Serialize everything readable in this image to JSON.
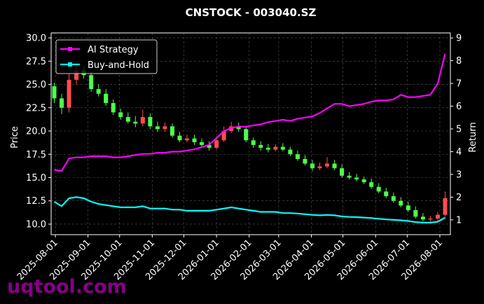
{
  "chart_data": {
    "type": "candlestick",
    "title": "CNSTOCK - 003040.SZ",
    "y_label": "Price",
    "y2_label": "Return",
    "watermark": "uqtool.com",
    "x": [
      "2025-07-31",
      "2025-08-07",
      "2025-08-14",
      "2025-08-21",
      "2025-08-28",
      "2025-09-04",
      "2025-09-11",
      "2025-09-18",
      "2025-09-25",
      "2025-10-02",
      "2025-10-09",
      "2025-10-16",
      "2025-10-23",
      "2025-10-30",
      "2025-11-06",
      "2025-11-13",
      "2025-11-20",
      "2025-11-27",
      "2025-12-04",
      "2025-12-11",
      "2025-12-18",
      "2025-12-25",
      "2026-01-01",
      "2026-01-08",
      "2026-01-15",
      "2026-01-22",
      "2026-01-29",
      "2026-02-05",
      "2026-02-12",
      "2026-02-19",
      "2026-02-26",
      "2026-03-05",
      "2026-03-12",
      "2026-03-19",
      "2026-03-26",
      "2026-04-02",
      "2026-04-09",
      "2026-04-16",
      "2026-04-23",
      "2026-04-30",
      "2026-05-07",
      "2026-05-14",
      "2026-05-21",
      "2026-05-28",
      "2026-06-04",
      "2026-06-11",
      "2026-06-18",
      "2026-06-25",
      "2026-07-02",
      "2026-07-09",
      "2026-07-16",
      "2026-07-23",
      "2026-07-30",
      "2026-08-06"
    ],
    "open": [
      24.8,
      23.5,
      22.5,
      25.5,
      26.5,
      26.0,
      24.5,
      24.0,
      23.0,
      22.0,
      21.5,
      21.0,
      20.8,
      21.5,
      20.5,
      20.2,
      20.5,
      19.5,
      19.0,
      19.2,
      18.8,
      18.5,
      18.2,
      19.0,
      20.0,
      20.5,
      20.2,
      19.0,
      18.5,
      18.2,
      18.0,
      18.3,
      18.0,
      17.5,
      17.0,
      16.5,
      16.0,
      16.2,
      16.5,
      16.0,
      15.2,
      15.0,
      14.8,
      14.5,
      14.0,
      13.5,
      13.0,
      12.5,
      12.0,
      11.5,
      10.8,
      10.5,
      10.6,
      11.0
    ],
    "high": [
      25.2,
      24.0,
      26.2,
      27.3,
      27.0,
      26.4,
      25.0,
      24.5,
      23.4,
      22.4,
      22.0,
      21.6,
      22.3,
      21.9,
      21.0,
      20.9,
      20.8,
      19.9,
      19.6,
      19.6,
      19.2,
      18.9,
      19.4,
      20.5,
      21.0,
      20.9,
      20.5,
      19.3,
      18.9,
      18.6,
      18.6,
      18.7,
      18.3,
      17.9,
      17.4,
      16.9,
      16.6,
      17.2,
      16.9,
      16.4,
      15.6,
      15.4,
      15.1,
      14.9,
      14.4,
      13.9,
      13.4,
      12.9,
      12.4,
      11.9,
      11.2,
      10.9,
      11.3,
      13.5
    ],
    "low": [
      23.0,
      21.8,
      22.0,
      25.0,
      25.6,
      24.2,
      23.7,
      22.7,
      21.7,
      21.2,
      20.8,
      20.4,
      20.5,
      20.2,
      19.9,
      19.9,
      19.3,
      18.8,
      18.8,
      18.5,
      18.2,
      17.9,
      18.0,
      18.8,
      19.8,
      19.9,
      18.8,
      18.2,
      17.9,
      17.7,
      17.8,
      17.8,
      17.3,
      16.8,
      16.3,
      15.7,
      15.8,
      16.0,
      15.8,
      15.0,
      14.8,
      14.6,
      14.3,
      13.8,
      13.3,
      12.8,
      12.3,
      11.8,
      11.3,
      10.6,
      10.3,
      10.2,
      10.4,
      10.8
    ],
    "close": [
      23.5,
      22.5,
      25.5,
      26.5,
      26.0,
      24.5,
      24.0,
      23.0,
      22.0,
      21.5,
      21.0,
      20.8,
      21.5,
      20.5,
      20.2,
      20.5,
      19.5,
      19.0,
      19.2,
      18.8,
      18.5,
      18.2,
      19.0,
      20.0,
      20.5,
      20.2,
      19.0,
      18.5,
      18.2,
      18.0,
      18.3,
      18.0,
      17.5,
      17.0,
      16.5,
      16.0,
      16.2,
      16.5,
      16.0,
      15.2,
      15.0,
      14.8,
      14.5,
      14.0,
      13.5,
      13.0,
      12.5,
      12.0,
      11.5,
      10.8,
      10.5,
      10.6,
      11.0,
      12.8
    ],
    "up_color": "#ff4d4d",
    "down_color": "#4dff4d",
    "series": [
      {
        "name": "AI Strategy",
        "color": "#ff00ff",
        "axis": "y2",
        "values": [
          3.2,
          3.15,
          3.7,
          3.75,
          3.75,
          3.8,
          3.8,
          3.8,
          3.75,
          3.75,
          3.8,
          3.85,
          3.9,
          3.9,
          3.95,
          3.95,
          4.0,
          4.0,
          4.05,
          4.1,
          4.2,
          4.3,
          4.6,
          4.9,
          5.05,
          5.1,
          5.1,
          5.15,
          5.2,
          5.3,
          5.35,
          5.4,
          5.35,
          5.45,
          5.5,
          5.55,
          5.7,
          5.9,
          6.1,
          6.1,
          6.0,
          6.05,
          6.1,
          6.2,
          6.25,
          6.25,
          6.3,
          6.5,
          6.4,
          6.4,
          6.45,
          6.5,
          7.0,
          8.3
        ]
      },
      {
        "name": "Buy-and-Hold",
        "color": "#00ffff",
        "axis": "y2",
        "values": [
          1.8,
          1.6,
          1.95,
          2.0,
          1.95,
          1.8,
          1.7,
          1.65,
          1.6,
          1.55,
          1.55,
          1.55,
          1.6,
          1.5,
          1.5,
          1.5,
          1.45,
          1.45,
          1.4,
          1.4,
          1.4,
          1.4,
          1.45,
          1.5,
          1.55,
          1.5,
          1.45,
          1.4,
          1.35,
          1.35,
          1.35,
          1.3,
          1.3,
          1.28,
          1.25,
          1.22,
          1.2,
          1.22,
          1.2,
          1.15,
          1.13,
          1.12,
          1.1,
          1.08,
          1.05,
          1.02,
          1.0,
          0.98,
          0.95,
          0.9,
          0.88,
          0.88,
          0.92,
          1.1
        ]
      }
    ],
    "xlim": [
      "2025-07-28",
      "2026-08-11"
    ],
    "xticks": [
      "2025-08-01",
      "2025-09-01",
      "2025-10-01",
      "2025-11-01",
      "2025-12-01",
      "2026-01-01",
      "2026-02-01",
      "2026-03-01",
      "2026-04-01",
      "2026-05-01",
      "2026-06-01",
      "2026-07-01",
      "2026-08-01"
    ],
    "ylim": [
      8.87,
      30.53
    ],
    "yticks": [
      {
        "value": 10,
        "label": "10.0"
      },
      12.5,
      {
        "value": 15,
        "label": "15.0"
      },
      17.5,
      {
        "value": 20,
        "label": "20.0"
      },
      22.5,
      {
        "value": 25,
        "label": "25.0"
      },
      27.5,
      {
        "value": 30,
        "label": "30.0"
      }
    ],
    "y2lim": [
      0.35,
      9.22
    ],
    "y2ticks": [
      1,
      2,
      3,
      4,
      5,
      6,
      7,
      8,
      9
    ],
    "grid": true,
    "legend": "upper left"
  }
}
